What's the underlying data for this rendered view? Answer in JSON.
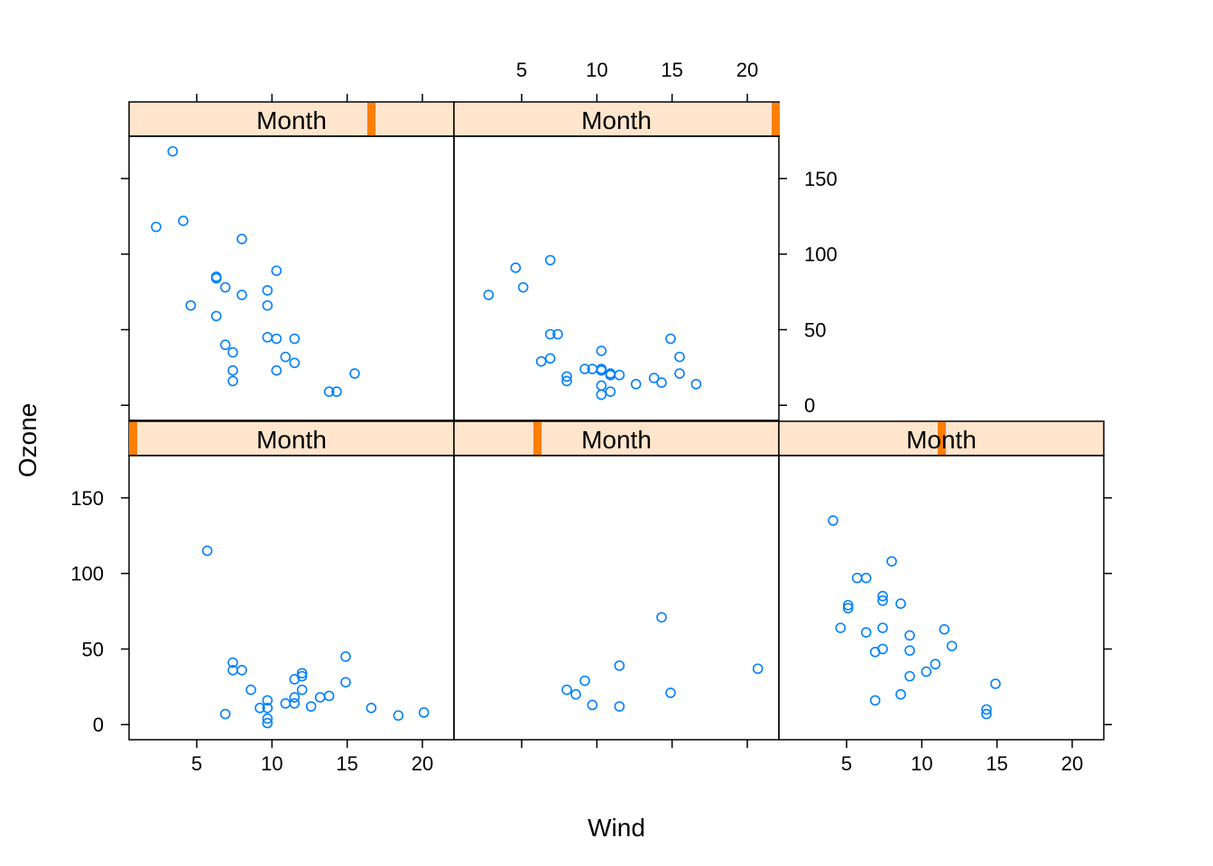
{
  "chart_data": {
    "type": "scatter",
    "layout": "lattice 3 columns x 2 rows, row 1 at bottom",
    "xlabel": "Wind",
    "ylabel": "Ozone",
    "xlim": [
      0.5,
      22.1
    ],
    "ylim": [
      -10,
      178
    ],
    "x_ticks": [
      5,
      10,
      15,
      20
    ],
    "y_ticks": [
      0,
      50,
      100,
      150
    ],
    "strip_label": "Month",
    "colors": {
      "points": "#0080ff",
      "strip_bg": "#ffe5cc",
      "strip_indicator": "#ff7f00"
    },
    "panels": [
      {
        "strip": "Month",
        "month_index": 1,
        "points": [
          [
            5.7,
            115
          ],
          [
            7.4,
            41
          ],
          [
            7.4,
            36
          ],
          [
            8.0,
            36
          ],
          [
            6.9,
            7
          ],
          [
            8.6,
            23
          ],
          [
            9.2,
            11
          ],
          [
            9.7,
            16
          ],
          [
            9.7,
            11
          ],
          [
            9.7,
            4
          ],
          [
            9.7,
            1
          ],
          [
            10.9,
            14
          ],
          [
            11.5,
            30
          ],
          [
            11.5,
            18
          ],
          [
            11.5,
            14
          ],
          [
            12.0,
            34
          ],
          [
            12.0,
            32
          ],
          [
            12.0,
            23
          ],
          [
            12.6,
            12
          ],
          [
            13.2,
            18
          ],
          [
            13.8,
            19
          ],
          [
            14.9,
            45
          ],
          [
            14.9,
            28
          ],
          [
            16.6,
            11
          ],
          [
            18.4,
            6
          ],
          [
            20.1,
            8
          ]
        ]
      },
      {
        "strip": "Month",
        "month_index": 2,
        "points": [
          [
            8.0,
            23
          ],
          [
            8.6,
            20
          ],
          [
            9.2,
            29
          ],
          [
            9.7,
            13
          ],
          [
            11.5,
            39
          ],
          [
            11.5,
            12
          ],
          [
            14.3,
            71
          ],
          [
            14.9,
            21
          ],
          [
            20.7,
            37
          ]
        ]
      },
      {
        "strip": "Month",
        "month_index": 3,
        "points": [
          [
            4.1,
            135
          ],
          [
            4.6,
            64
          ],
          [
            5.1,
            79
          ],
          [
            5.1,
            77
          ],
          [
            5.7,
            97
          ],
          [
            6.3,
            97
          ],
          [
            6.3,
            61
          ],
          [
            6.9,
            48
          ],
          [
            6.9,
            16
          ],
          [
            7.4,
            85
          ],
          [
            7.4,
            82
          ],
          [
            7.4,
            64
          ],
          [
            7.4,
            50
          ],
          [
            8.0,
            108
          ],
          [
            8.6,
            80
          ],
          [
            8.6,
            20
          ],
          [
            9.2,
            59
          ],
          [
            9.2,
            49
          ],
          [
            9.2,
            32
          ],
          [
            10.3,
            35
          ],
          [
            10.9,
            40
          ],
          [
            11.5,
            63
          ],
          [
            12.0,
            52
          ],
          [
            14.3,
            10
          ],
          [
            14.3,
            7
          ],
          [
            14.9,
            27
          ]
        ]
      },
      {
        "strip": "Month",
        "month_index": 4,
        "points": [
          [
            2.3,
            118
          ],
          [
            3.4,
            168
          ],
          [
            4.1,
            122
          ],
          [
            4.6,
            66
          ],
          [
            6.3,
            85
          ],
          [
            6.3,
            84
          ],
          [
            6.3,
            59
          ],
          [
            6.9,
            78
          ],
          [
            6.9,
            40
          ],
          [
            7.4,
            35
          ],
          [
            7.4,
            23
          ],
          [
            7.4,
            16
          ],
          [
            8.0,
            110
          ],
          [
            8.0,
            73
          ],
          [
            9.7,
            76
          ],
          [
            9.7,
            66
          ],
          [
            9.7,
            45
          ],
          [
            10.3,
            89
          ],
          [
            10.3,
            44
          ],
          [
            10.3,
            23
          ],
          [
            10.9,
            32
          ],
          [
            11.5,
            44
          ],
          [
            11.5,
            28
          ],
          [
            13.8,
            9
          ],
          [
            14.3,
            9
          ],
          [
            15.5,
            21
          ]
        ]
      },
      {
        "strip": "Month",
        "month_index": 5,
        "points": [
          [
            2.8,
            73
          ],
          [
            4.6,
            91
          ],
          [
            5.1,
            78
          ],
          [
            6.3,
            29
          ],
          [
            6.9,
            96
          ],
          [
            6.9,
            47
          ],
          [
            6.9,
            31
          ],
          [
            7.4,
            47
          ],
          [
            8.0,
            19
          ],
          [
            8.0,
            16
          ],
          [
            9.2,
            24
          ],
          [
            9.7,
            24
          ],
          [
            10.3,
            36
          ],
          [
            10.3,
            24
          ],
          [
            10.3,
            23
          ],
          [
            10.3,
            13
          ],
          [
            10.3,
            7
          ],
          [
            10.9,
            21
          ],
          [
            10.9,
            20
          ],
          [
            10.9,
            9
          ],
          [
            11.5,
            20
          ],
          [
            12.6,
            14
          ],
          [
            13.8,
            18
          ],
          [
            14.3,
            15
          ],
          [
            14.9,
            44
          ],
          [
            15.5,
            32
          ],
          [
            15.5,
            21
          ],
          [
            16.6,
            14
          ]
        ]
      }
    ]
  }
}
